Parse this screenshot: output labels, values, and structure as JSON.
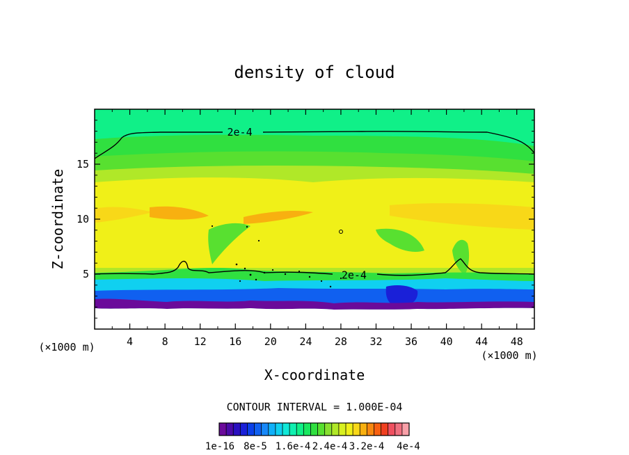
{
  "chart_data": {
    "type": "heatmap",
    "title": "density of cloud",
    "xlabel": "X-coordinate",
    "ylabel": "Z-coordinate",
    "x_unit": "(×1000 m)",
    "x_unit_right": "(×1000 m)",
    "xlim": [
      0,
      50
    ],
    "ylim": [
      0,
      20
    ],
    "x_ticks": [
      4,
      8,
      12,
      16,
      20,
      24,
      28,
      32,
      36,
      40,
      44,
      48
    ],
    "y_ticks": [
      5,
      10,
      15
    ],
    "grid": false,
    "contour_interval_text": "CONTOUR INTERVAL = 1.000E-04",
    "contour_labels": [
      {
        "text": "2e-4",
        "x": 16.5,
        "z": 17.9
      },
      {
        "text": "2e-4",
        "x": 29.5,
        "z": 4.9
      }
    ],
    "colorbar": {
      "colors": [
        "#6a0a9a",
        "#4a0aa8",
        "#2a10c0",
        "#1a20d8",
        "#0a40e8",
        "#1060f0",
        "#1888f8",
        "#10b0f8",
        "#10d0f0",
        "#10e8d8",
        "#10f0b0",
        "#10f088",
        "#18e860",
        "#30e040",
        "#58e030",
        "#88e030",
        "#b0e828",
        "#d8f020",
        "#f0f018",
        "#f8d818",
        "#f8b010",
        "#f88810",
        "#f86010",
        "#f04020",
        "#f05060",
        "#f07080",
        "#f8a0a8"
      ],
      "labels": [
        "1e-16",
        "8e-5",
        "1.6e-4",
        "2.4e-4",
        "3.2e-4",
        "4e-4"
      ]
    }
  }
}
